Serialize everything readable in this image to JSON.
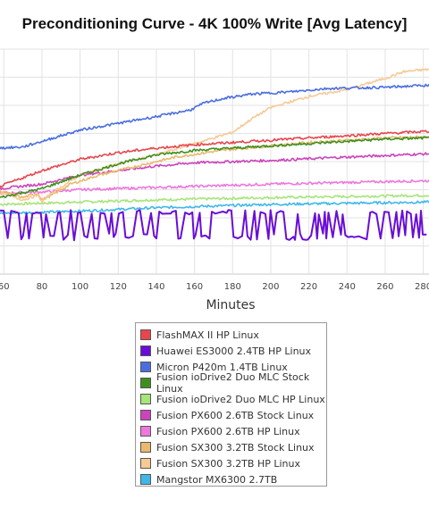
{
  "chart_data": {
    "type": "line",
    "title": "Preconditioning Curve - 4K 100% Write [Avg Latency]",
    "xlabel": "Minutes",
    "ylabel": "",
    "x_ticks": [
      60,
      80,
      100,
      120,
      140,
      160,
      180,
      200,
      220,
      240,
      260,
      280
    ],
    "xlim": [
      58,
      283
    ],
    "ylim": [
      0,
      100
    ],
    "y_scale": "relative (axis values cropped)",
    "grid": true,
    "legend_position": "bottom",
    "series": [
      {
        "name": "FlashMAX II HP Linux",
        "color": "#e8454d",
        "x": [
          58,
          80,
          100,
          120,
          140,
          160,
          180,
          200,
          220,
          240,
          260,
          283
        ],
        "y": [
          39,
          46,
          51,
          54,
          56,
          57.5,
          58.5,
          59.5,
          60.5,
          61.5,
          62.5,
          63.5
        ]
      },
      {
        "name": "Huawei ES3000 2.4TB HP Linux",
        "color": "#6a0dd8",
        "x": [
          58,
          283
        ],
        "y": [
          23.5,
          23.5
        ],
        "noise": "oscillating 15-28"
      },
      {
        "name": "Micron P420m 1.4TB Linux",
        "color": "#4a6ee0",
        "x": [
          58,
          70,
          80,
          100,
          120,
          140,
          158,
          165,
          175,
          190,
          210,
          230,
          260,
          283
        ],
        "y": [
          56,
          56.5,
          59,
          64,
          67,
          70,
          73,
          76,
          78,
          80,
          81,
          82.5,
          83,
          84
        ]
      },
      {
        "name": "Fusion ioDrive2 Duo MLC Stock Linux",
        "color": "#3f8f1e",
        "x": [
          58,
          80,
          100,
          120,
          140,
          160,
          180,
          200,
          220,
          240,
          260,
          283
        ],
        "y": [
          34,
          38,
          44,
          49,
          53,
          55,
          56,
          57,
          58,
          59,
          60,
          60.5
        ]
      },
      {
        "name": "Fusion ioDrive2 Duo MLC HP Linux",
        "color": "#a6e57a",
        "x": [
          58,
          80,
          100,
          140,
          200,
          283
        ],
        "y": [
          31,
          31.5,
          32,
          33,
          34,
          35
        ]
      },
      {
        "name": "Fusion PX600 2.6TB Stock Linux",
        "color": "#cc44bb",
        "x": [
          58,
          80,
          100,
          120,
          140,
          160,
          200,
          240,
          283
        ],
        "y": [
          38,
          40,
          44,
          46,
          48,
          49.5,
          50.5,
          52,
          53.5
        ]
      },
      {
        "name": "Fusion PX600 2.6TB HP Linux",
        "color": "#ee77dd",
        "x": [
          58,
          80,
          100,
          140,
          200,
          283
        ],
        "y": [
          36,
          36.5,
          37.5,
          38.5,
          40,
          41.5
        ]
      },
      {
        "name": "Fusion SX300 3.2TB Stock Linux",
        "color": "#e9b96e",
        "x": [
          58,
          70,
          78,
          80,
          85,
          95,
          110,
          130,
          150,
          170,
          180,
          200,
          220,
          240,
          260,
          283
        ],
        "y": [
          37,
          34,
          36,
          33,
          35,
          40,
          44,
          48,
          52,
          54.5,
          55.5,
          57,
          58.5,
          59.5,
          60.5,
          61
        ]
      },
      {
        "name": "Fusion SX300 3.2TB HP Linux",
        "color": "#f7c995",
        "x": [
          58,
          70,
          78,
          80,
          85,
          100,
          120,
          140,
          160,
          180,
          190,
          200,
          220,
          240,
          260,
          270,
          283
        ],
        "y": [
          36,
          33,
          35,
          32,
          36,
          44,
          49,
          53,
          58,
          63,
          69,
          74,
          79,
          82,
          87,
          90,
          91
        ]
      },
      {
        "name": "Mangstor MX6300 2.7TB",
        "color": "#3fb8e8",
        "x": [
          58,
          80,
          100,
          140,
          200,
          283
        ],
        "y": [
          27,
          27.5,
          28,
          29.5,
          31,
          32
        ]
      }
    ]
  }
}
